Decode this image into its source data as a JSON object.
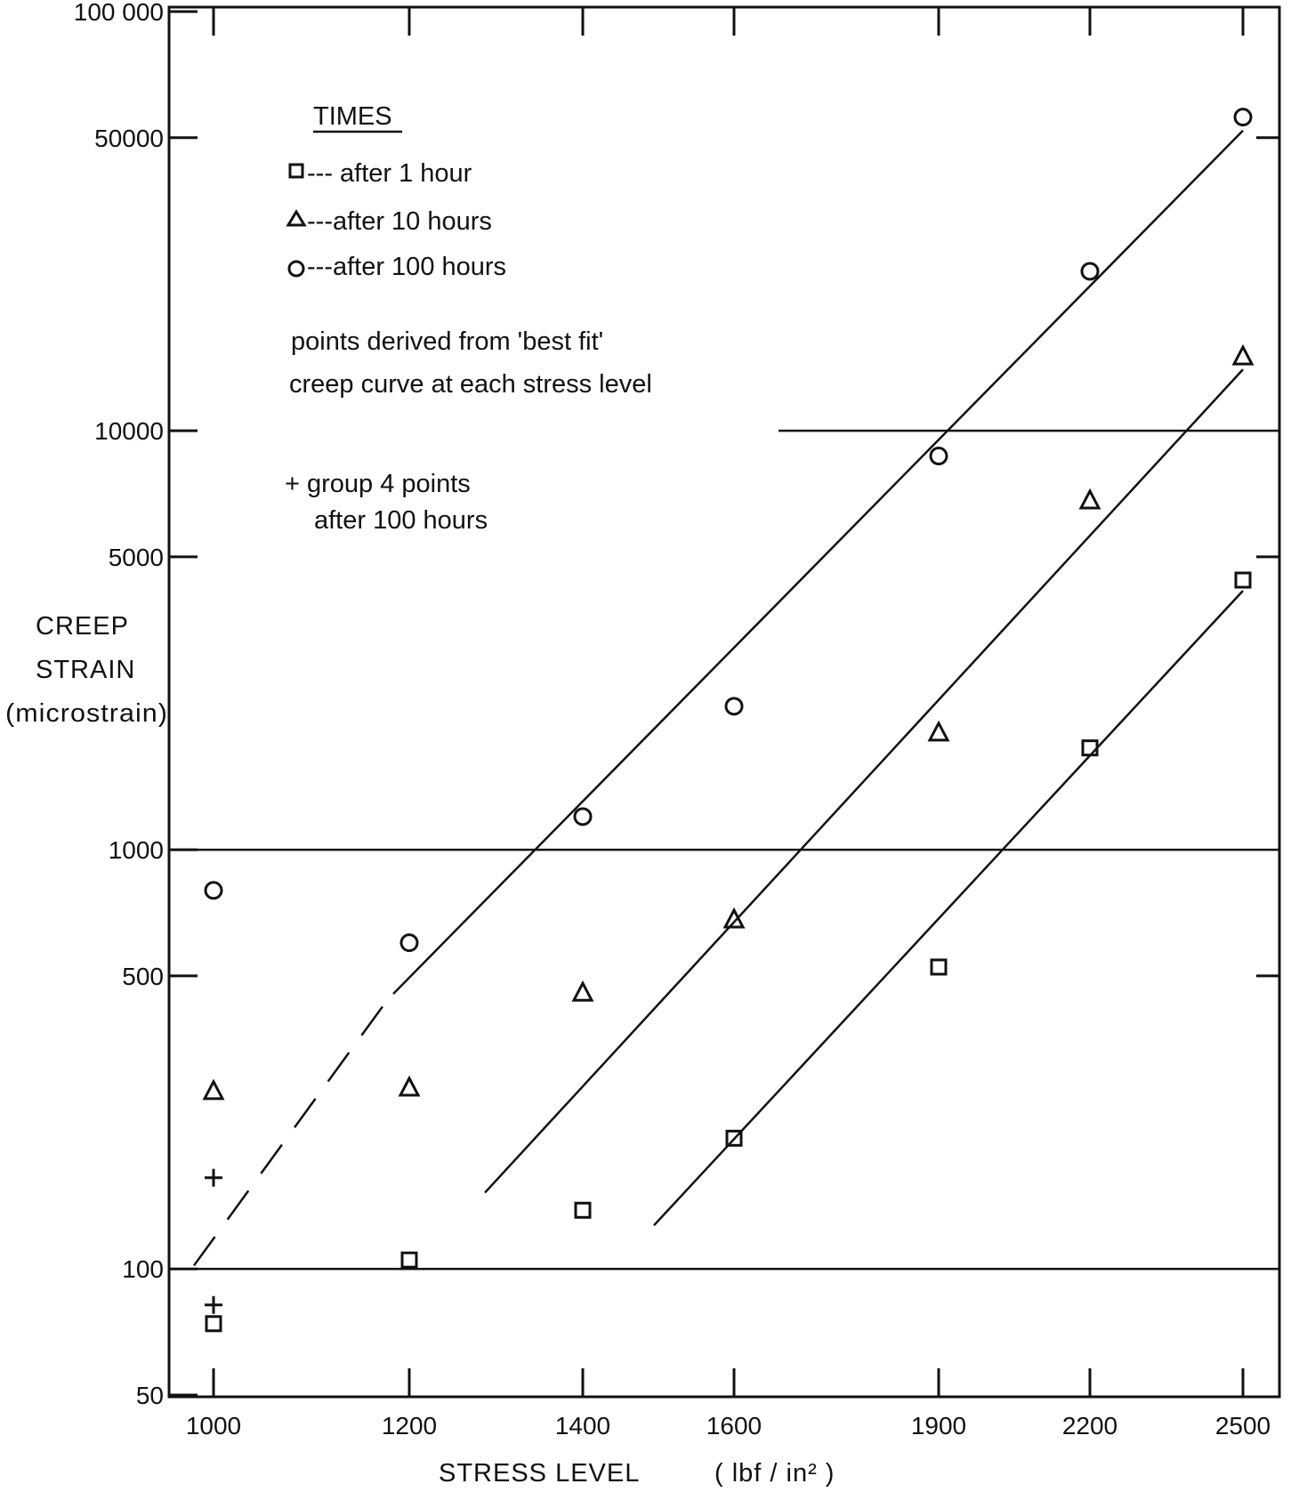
{
  "chart_data": {
    "type": "scatter",
    "title": "",
    "xlabel_main": "STRESS LEVEL",
    "xlabel_unit": "( lbf / in² )",
    "ylabel": [
      "CREEP",
      "STRAIN",
      "(microstrain)"
    ],
    "y_scale": "log",
    "ylim": [
      50,
      100000
    ],
    "y_ticks": [
      {
        "value": 50,
        "label": "50"
      },
      {
        "value": 100,
        "label": "100"
      },
      {
        "value": 500,
        "label": "500"
      },
      {
        "value": 1000,
        "label": "1000"
      },
      {
        "value": 5000,
        "label": "5000"
      },
      {
        "value": 10000,
        "label": "10000"
      },
      {
        "value": 50000,
        "label": "50000"
      },
      {
        "value": 100000,
        "label": "100 000"
      }
    ],
    "categories": [
      "1000",
      "1200",
      "1400",
      "1600",
      "1900",
      "2200",
      "2500"
    ],
    "grid_lines": [
      100,
      1000,
      10000
    ],
    "legend": {
      "title": "TIMES",
      "entries": [
        {
          "symbol": "square",
          "text": "---  after   1 hour"
        },
        {
          "symbol": "triangle",
          "text": "---after  10 hours"
        },
        {
          "symbol": "circle",
          "text": "---after 100 hours"
        }
      ],
      "note_lines": [
        "points derived from 'best fit'",
        "creep curve at each stress level"
      ],
      "plus_note_lines": [
        "+ group 4 points",
        "after 100 hours"
      ]
    },
    "series": [
      {
        "name": "after 1 hour",
        "marker": "square",
        "values": [
          74,
          105,
          138,
          205,
          525,
          1750,
          4400
        ]
      },
      {
        "name": "after 10 hours",
        "marker": "triangle",
        "values": [
          265,
          270,
          455,
          680,
          1900,
          6800,
          15000
        ]
      },
      {
        "name": "after 100 hours",
        "marker": "circle",
        "values": [
          800,
          600,
          1200,
          2200,
          8700,
          24000,
          56000
        ]
      },
      {
        "name": "group 4 points after 100 hours",
        "marker": "plus",
        "values": [
          165,
          null,
          null,
          null,
          null,
          null,
          null
        ],
        "extra": [
          {
            "category": "1000",
            "value": 82
          }
        ]
      }
    ],
    "fit_lines": [
      {
        "series": "after 100 hours",
        "from": {
          "x": "1000",
          "y": 108
        },
        "to": {
          "x": "2500",
          "y": 52000
        },
        "dashed_until": {
          "x": "1200",
          "y": 440
        }
      },
      {
        "series": "after 10 hours",
        "from": {
          "x": "1200",
          "y": 152
        },
        "to": {
          "x": "2500",
          "y": 14000
        }
      },
      {
        "series": "after 1 hour",
        "from": {
          "x": "1400",
          "y": 127
        },
        "to": {
          "x": "2500",
          "y": 4150
        }
      }
    ]
  }
}
